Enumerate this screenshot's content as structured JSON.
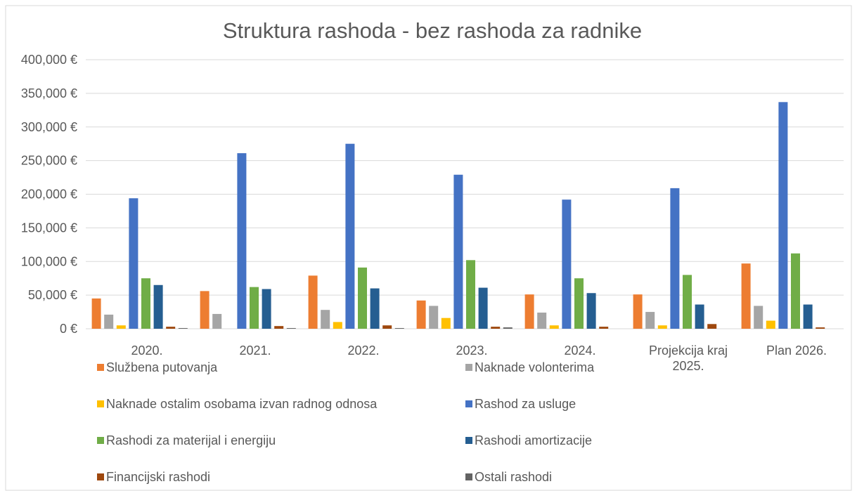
{
  "chart_data": {
    "type": "bar",
    "title": "Struktura rashoda - bez rashoda za radnike",
    "categories": [
      "2020.",
      "2021.",
      "2022.",
      "2023.",
      "2024.",
      "Projekcija kraj 2025.",
      "Plan 2026."
    ],
    "series": [
      {
        "name": "Službena putovanja",
        "color": "#ed7d31",
        "values": [
          45000,
          56000,
          79000,
          42000,
          51000,
          51000,
          97000
        ]
      },
      {
        "name": "Naknade volonterima",
        "color": "#a5a5a5",
        "values": [
          21000,
          22000,
          28000,
          34000,
          24000,
          25000,
          34000
        ]
      },
      {
        "name": "Naknade ostalim osobama izvan radnog odnosa",
        "color": "#ffc000",
        "values": [
          5000,
          0,
          10000,
          16000,
          5000,
          5000,
          12000
        ]
      },
      {
        "name": "Rashod za usluge",
        "color": "#4472c4",
        "values": [
          194000,
          261000,
          275000,
          229000,
          192000,
          209000,
          337000
        ]
      },
      {
        "name": "Rashodi za materijal i energiju",
        "color": "#70ad47",
        "values": [
          75000,
          62000,
          91000,
          102000,
          75000,
          80000,
          112000
        ]
      },
      {
        "name": "Rashodi amortizacije",
        "color": "#255e91",
        "values": [
          65000,
          59000,
          60000,
          61000,
          53000,
          36000,
          36000
        ]
      },
      {
        "name": "Financijski rashodi",
        "color": "#9e480e",
        "values": [
          3000,
          4000,
          5000,
          3000,
          3000,
          7000,
          2000
        ]
      },
      {
        "name": "Ostali rashodi",
        "color": "#636363",
        "values": [
          1000,
          1000,
          1000,
          2000,
          0,
          0,
          0
        ]
      }
    ],
    "ylim": [
      0,
      400000
    ],
    "yticks": [
      {
        "value": 0,
        "label": "0 €"
      },
      {
        "value": 50000,
        "label": "50,000 €"
      },
      {
        "value": 100000,
        "label": "100,000 €"
      },
      {
        "value": 150000,
        "label": "150,000 €"
      },
      {
        "value": 200000,
        "label": "200,000 €"
      },
      {
        "value": 250000,
        "label": "250,000 €"
      },
      {
        "value": 300000,
        "label": "300,000 €"
      },
      {
        "value": 350000,
        "label": "350,000 €"
      },
      {
        "value": 400000,
        "label": "400,000 €"
      }
    ],
    "grid": true
  }
}
